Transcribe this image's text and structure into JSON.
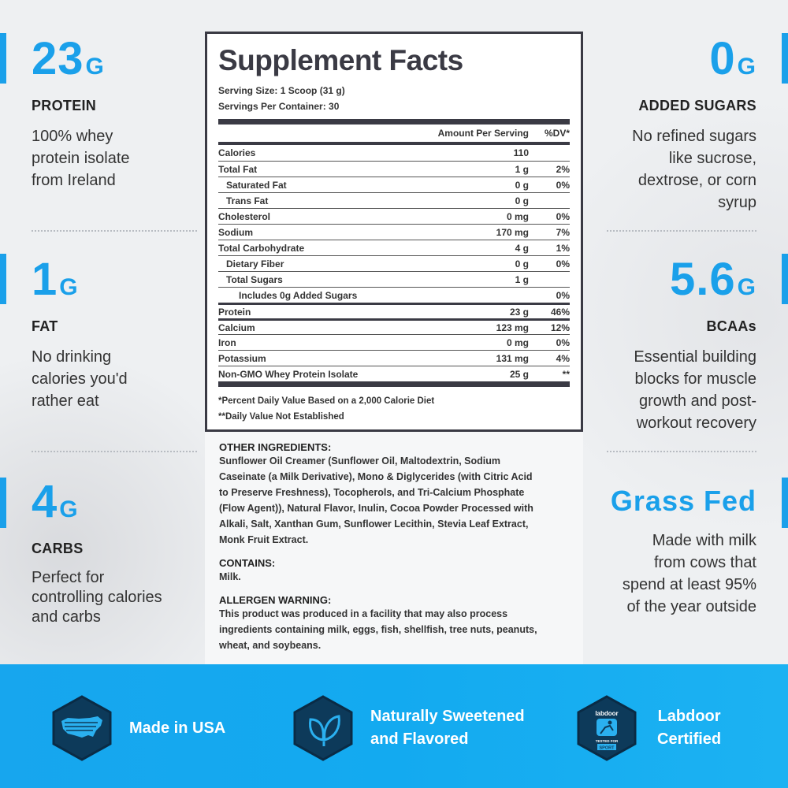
{
  "left_stats": [
    {
      "value": "23",
      "unit": "G",
      "label": "PROTEIN",
      "desc": [
        "100% whey",
        "protein isolate",
        "from Ireland"
      ]
    },
    {
      "value": "1",
      "unit": "G",
      "label": "FAT",
      "desc": [
        "No drinking",
        "calories you'd",
        "rather eat"
      ]
    },
    {
      "value": "4",
      "unit": "G",
      "label": "CARBS",
      "desc": [
        "Perfect for",
        "controlling calories",
        "and carbs"
      ]
    }
  ],
  "right_stats": [
    {
      "value": "0",
      "unit": "G",
      "label": "ADDED SUGARS",
      "desc": [
        "No refined sugars",
        "like sucrose,",
        "dextrose, or corn",
        "syrup"
      ]
    },
    {
      "value": "5.6",
      "unit": "G",
      "label": "BCAAs",
      "desc": [
        "Essential building",
        "blocks for muscle",
        "growth and post-",
        "workout recovery"
      ]
    },
    {
      "value": "Grass Fed",
      "unit": "",
      "label": "",
      "desc": [
        "Made with milk",
        "from cows that",
        "spend at least 95%",
        "of the year outside"
      ]
    }
  ],
  "facts": {
    "title": "Supplement Facts",
    "serving_size": "Serving Size: 1 Scoop (31 g)",
    "servings": "Servings Per Container: 30",
    "col_amount": "Amount Per Serving",
    "col_dv": "%DV*",
    "rows": [
      {
        "name": "Calories",
        "amount": "110",
        "dv": ""
      },
      {
        "name": "Total Fat",
        "amount": "1 g",
        "dv": "2%"
      },
      {
        "name": "Saturated Fat",
        "amount": "0 g",
        "dv": "0%"
      },
      {
        "name": "Trans Fat",
        "amount": "0 g",
        "dv": ""
      },
      {
        "name": "Cholesterol",
        "amount": "0 mg",
        "dv": "0%"
      },
      {
        "name": "Sodium",
        "amount": "170 mg",
        "dv": "7%"
      },
      {
        "name": "Total Carbohydrate",
        "amount": "4 g",
        "dv": "1%"
      },
      {
        "name": "Dietary Fiber",
        "amount": "0 g",
        "dv": "0%"
      },
      {
        "name": "Total Sugars",
        "amount": "1 g",
        "dv": ""
      },
      {
        "name": "Includes 0g Added Sugars",
        "amount": "",
        "dv": "0%"
      },
      {
        "name": "Protein",
        "amount": "23 g",
        "dv": "46%"
      },
      {
        "name": "Calcium",
        "amount": "123 mg",
        "dv": "12%"
      },
      {
        "name": "Iron",
        "amount": "0 mg",
        "dv": "0%"
      },
      {
        "name": "Potassium",
        "amount": "131 mg",
        "dv": "4%"
      },
      {
        "name": "Non-GMO Whey Protein Isolate",
        "amount": "25 g",
        "dv": "**"
      }
    ],
    "footnote1": "*Percent Daily Value Based on a 2,000 Calorie Diet",
    "footnote2": "**Daily Value Not Established"
  },
  "ingredients": {
    "other_heading": "OTHER INGREDIENTS:",
    "other_lines": [
      "Sunflower Oil Creamer (Sunflower Oil, Maltodextrin, Sodium",
      "Caseinate (a Milk Derivative), Mono & Diglycerides (with Citric Acid",
      "to Preserve Freshness), Tocopherols, and Tri-Calcium Phosphate",
      "(Flow Agent)), Natural Flavor, Inulin, Cocoa Powder Processed with",
      "Alkali, Salt, Xanthan Gum, Sunflower Lecithin, Stevia Leaf Extract,",
      "Monk Fruit Extract."
    ],
    "contains_heading": "CONTAINS:",
    "contains_text": "Milk.",
    "allergen_heading": "ALLERGEN WARNING:",
    "allergen_lines": [
      "This product was produced in a facility that may also process",
      "ingredients containing milk, eggs, fish, shellfish, tree nuts, peanuts,",
      "wheat, and soybeans."
    ]
  },
  "badges": [
    {
      "icon": "usa-map-icon",
      "line1": "Made in USA",
      "line2": ""
    },
    {
      "icon": "leaf-icon",
      "line1": "Naturally Sweetened",
      "line2": "and Flavored"
    },
    {
      "icon": "labdoor-seal-icon",
      "line1": "Labdoor",
      "line2": "Certified",
      "seal_top": "labdoor",
      "seal_bottom1": "TESTED FOR",
      "seal_bottom2": "SPORT"
    }
  ],
  "colors": {
    "accent": "#1aa0ea",
    "panel_border": "#3a3a44",
    "band": "#17a6ee",
    "hex_fill": "#0d3a5a"
  }
}
